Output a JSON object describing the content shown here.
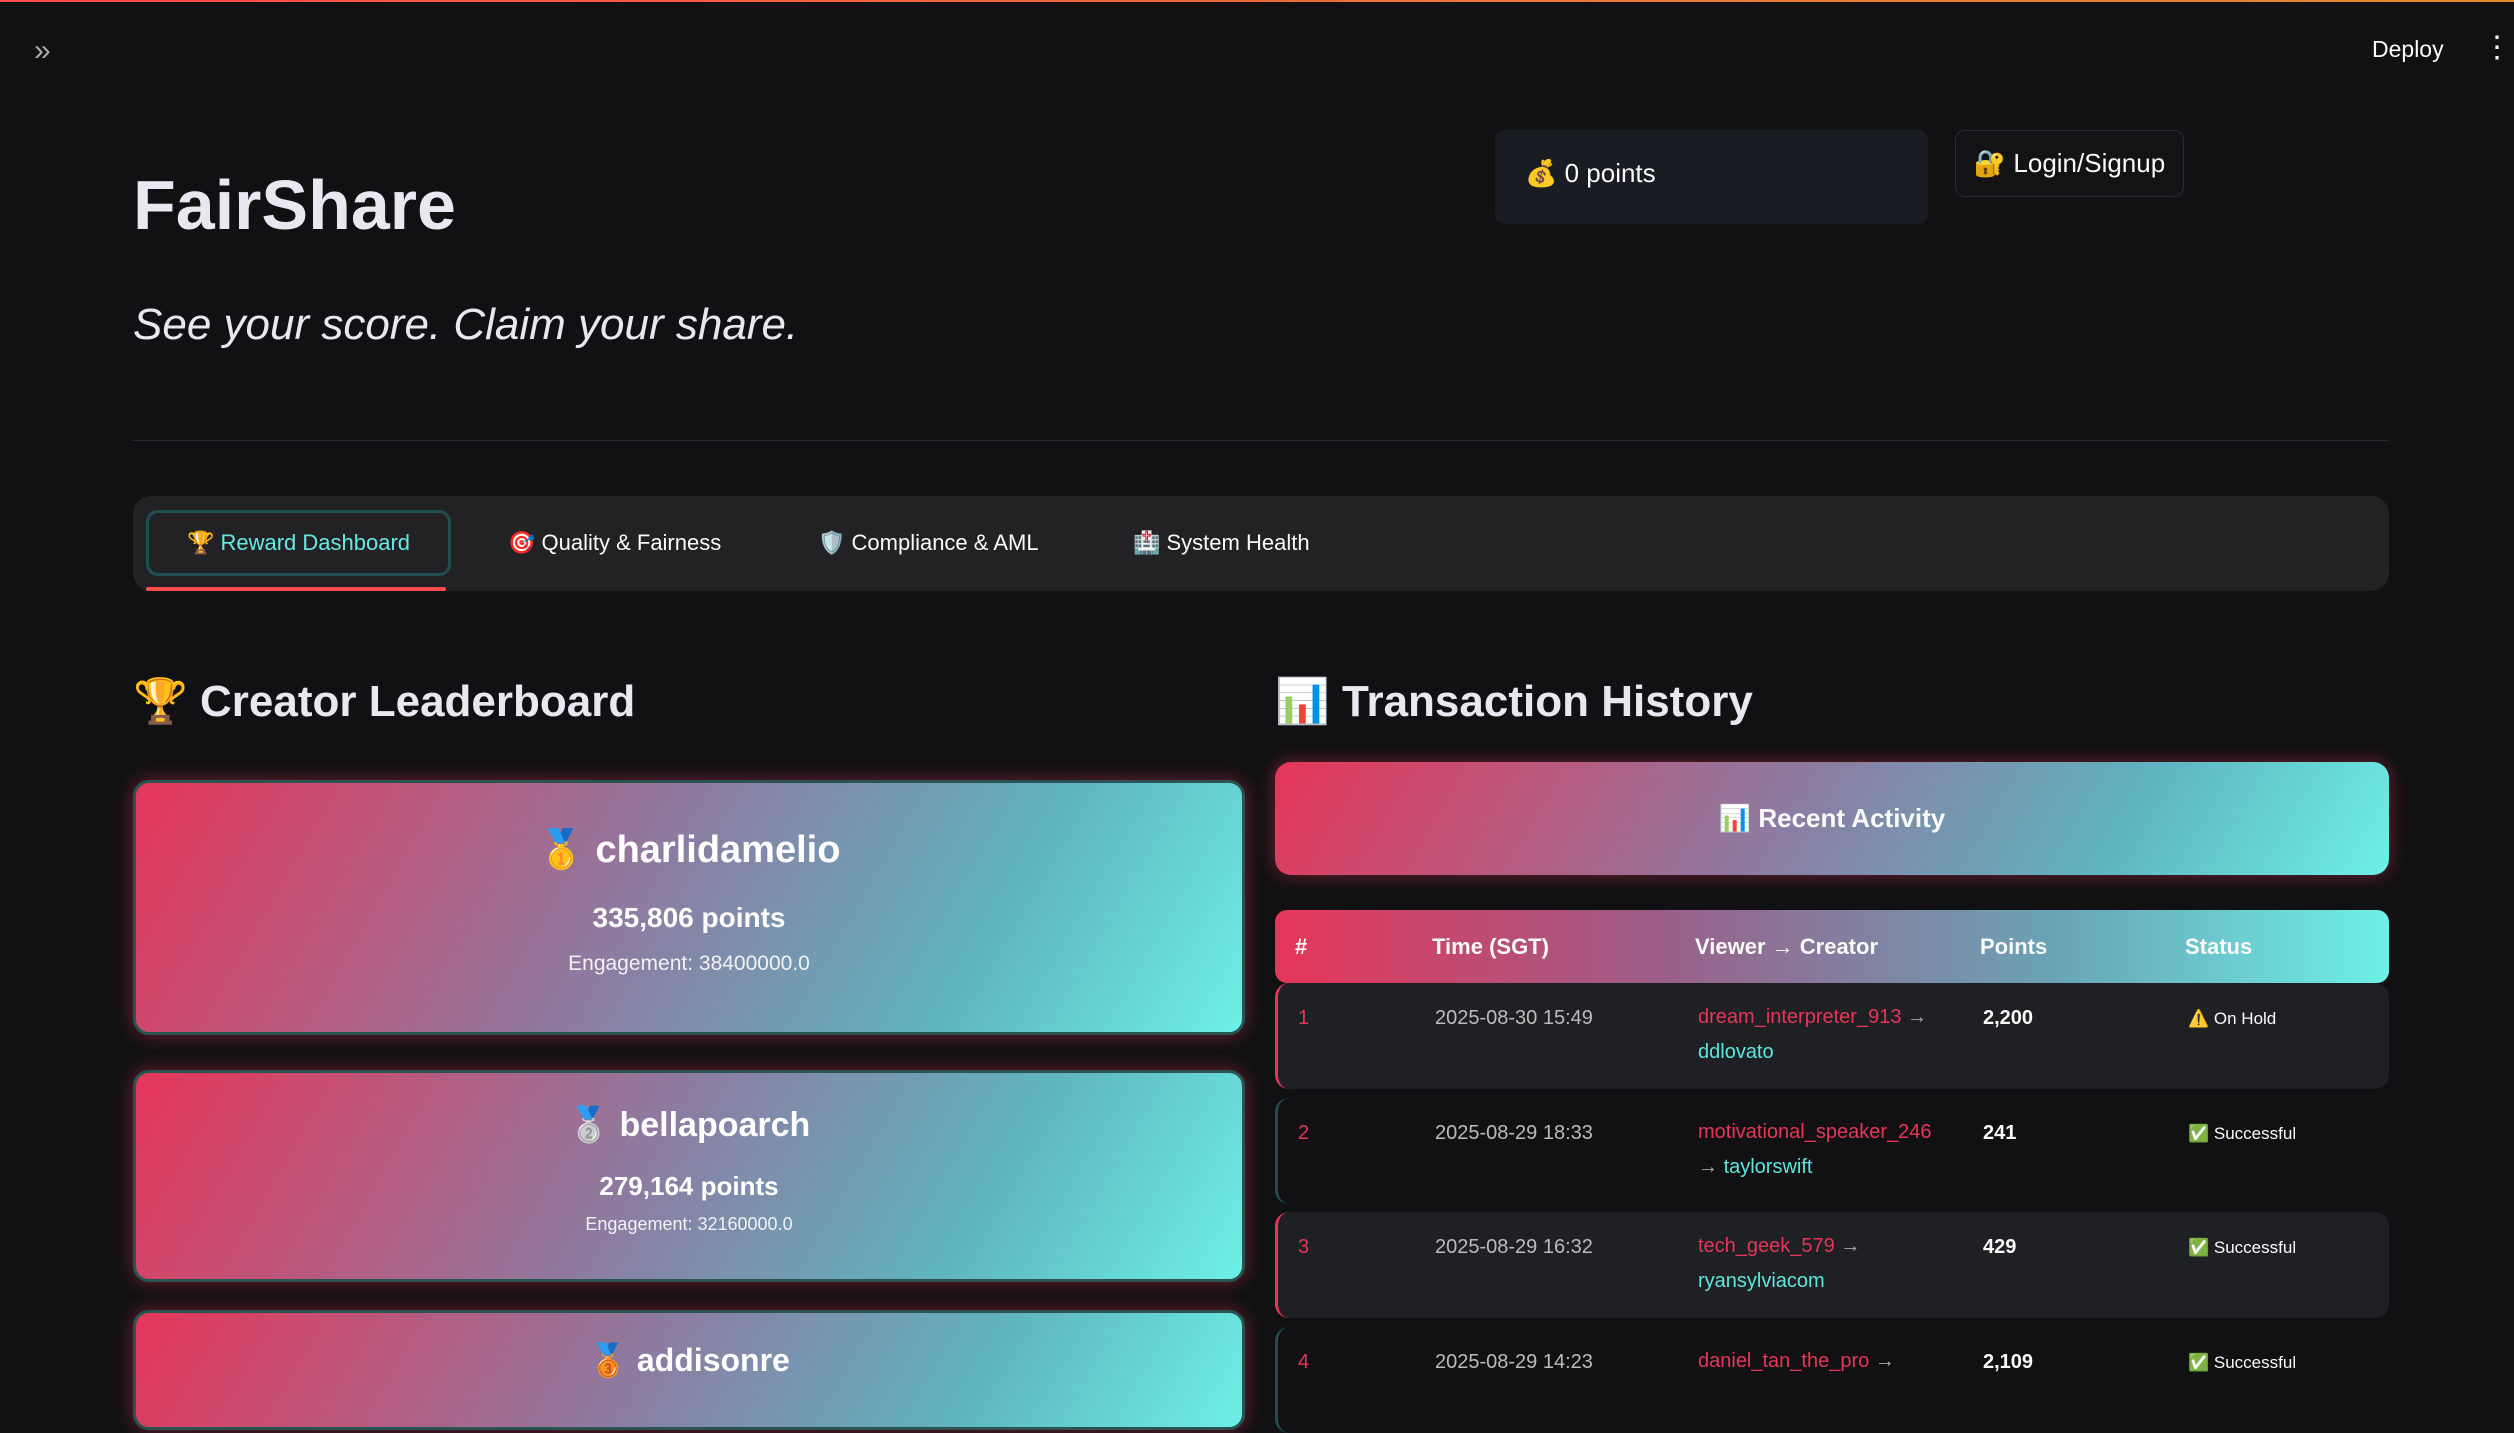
{
  "header": {
    "deploy": "Deploy",
    "expand_icon": "double-chevron-right",
    "menu_icon": "kebab"
  },
  "app": {
    "title": "FairShare",
    "subtitle": "See your score. Claim your share.",
    "points": "💰 0 points",
    "login": "🔐 Login/Signup"
  },
  "tabs": [
    {
      "label": "🏆 Reward Dashboard",
      "active": true
    },
    {
      "label": "🎯 Quality & Fairness"
    },
    {
      "label": "🛡️ Compliance & AML"
    },
    {
      "label": "🏥 System Health"
    }
  ],
  "leaderboard": {
    "title": "🏆 Creator Leaderboard",
    "cards": [
      {
        "medal": "🥇",
        "name": "charlidamelio",
        "points": "335,806 points",
        "engagement": "Engagement: 38400000.0"
      },
      {
        "medal": "🥈",
        "name": "bellapoarch",
        "points": "279,164 points",
        "engagement": "Engagement: 32160000.0"
      },
      {
        "medal": "🥉",
        "name": "addisonre"
      }
    ]
  },
  "transactions": {
    "title": "📊 Transaction History",
    "banner": "📊 Recent Activity",
    "columns": [
      "#",
      "Time (SGT)",
      "Viewer → Creator",
      "Points",
      "Status"
    ],
    "rows": [
      {
        "n": "1",
        "time": "2025-08-30 15:49",
        "viewer": "dream_interpreter_913",
        "creator": "ddlovato",
        "points": "2,200",
        "status": "⚠️ On Hold"
      },
      {
        "n": "2",
        "time": "2025-08-29 18:33",
        "viewer": "motivational_speaker_246",
        "creator": "taylorswift",
        "points": "241",
        "status": "✅ Successful"
      },
      {
        "n": "3",
        "time": "2025-08-29 16:32",
        "viewer": "tech_geek_579",
        "creator": "ryansylviacom",
        "points": "429",
        "status": "✅ Successful"
      },
      {
        "n": "4",
        "time": "2025-08-29 14:23",
        "viewer": "daniel_tan_the_pro",
        "creator": "",
        "points": "2,109",
        "status": "✅ Successful"
      }
    ]
  },
  "colors": {
    "accent_red": "#e63658",
    "accent_cyan": "#6df0e6",
    "tab_underline": "#ff4b4b"
  }
}
